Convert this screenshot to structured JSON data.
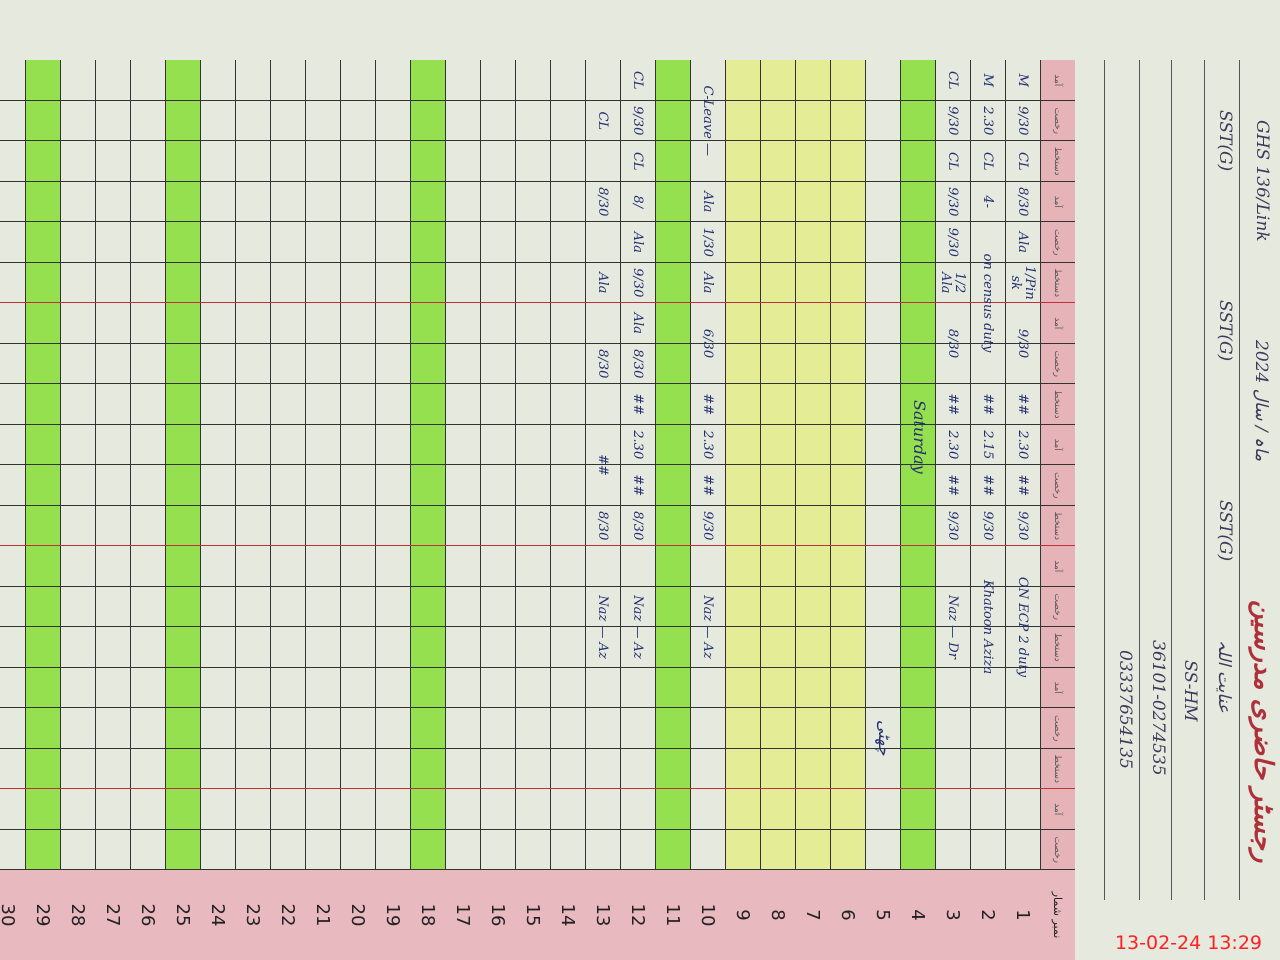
{
  "header": {
    "title": "رجسٹر حاضری مدرسین",
    "school": "GHS 136/Link",
    "label_year": "ماہ / سال 2024",
    "names": [
      "عنایت اللہ",
      "SS-HM",
      "36101-0274535",
      "03337654135"
    ],
    "designations": [
      "SST(G)",
      "SST(G)",
      "SST(G)"
    ]
  },
  "column_headers": [
    "آمد",
    "رخصت",
    "دستخط",
    "آمد",
    "رخصت",
    "دستخط",
    "آمد",
    "رخصت",
    "دستخط",
    "آمد",
    "رخصت",
    "دستخط",
    "آمد",
    "رخصت",
    "دستخط",
    "آمد",
    "رخصت",
    "دستخط",
    "آمد",
    "رخصت"
  ],
  "serial_header": "نمبر شمار",
  "rows": [
    {
      "n": "1",
      "cells": [
        "M",
        "9/30",
        "CL",
        "8/30",
        "Ala",
        "1/Pinsk",
        "9/30",
        "",
        "##",
        "2.30",
        "##",
        "9/30",
        "ON ECP 2 duty",
        "",
        "",
        "",
        "",
        "",
        "",
        ""
      ]
    },
    {
      "n": "2",
      "cells": [
        "M",
        "2.30",
        "CL",
        "4-",
        "on census duty",
        "",
        "",
        "",
        "##",
        "2.15",
        "##",
        "9/30",
        "Khatoon Aziza",
        "",
        "",
        "",
        "",
        "",
        "",
        ""
      ]
    },
    {
      "n": "3",
      "cells": [
        "CL",
        "9/30",
        "CL",
        "9/30",
        "9/30",
        "1/2 Ala",
        "8/30",
        "",
        "##",
        "2.30",
        "##",
        "9/30",
        "Naz — Dr",
        "",
        "",
        "",
        "",
        "",
        "",
        ""
      ]
    },
    {
      "n": "4",
      "cells": []
    },
    {
      "n": "5",
      "cells": []
    },
    {
      "n": "6",
      "cells": []
    },
    {
      "n": "7",
      "cells": []
    },
    {
      "n": "8",
      "cells": []
    },
    {
      "n": "9",
      "cells": []
    },
    {
      "n": "10",
      "cells": [
        "C-Leave —",
        "",
        "",
        "Ala",
        "1/30",
        "Ala",
        "6/30",
        "",
        "##",
        "2.30",
        "##",
        "9/30",
        "Naz — Az",
        "",
        "",
        "",
        "",
        "",
        "",
        ""
      ]
    },
    {
      "n": "11",
      "cells": []
    },
    {
      "n": "12",
      "cells": [
        "CL",
        "9/30",
        "CL",
        "8/",
        "Ala",
        "9/30",
        "Ala",
        "8/30",
        "##",
        "2.30",
        "##",
        "8/30",
        "Naz — Az",
        "",
        "",
        "",
        "",
        "",
        "",
        ""
      ]
    },
    {
      "n": "13",
      "cells": [
        "",
        "CL",
        "8/30",
        "",
        "",
        "Ala",
        "8/30",
        "",
        "",
        "##",
        "",
        "8/30",
        "Naz — Az",
        "",
        "",
        "",
        "",
        "",
        "",
        ""
      ]
    },
    {
      "n": "14",
      "cells": []
    },
    {
      "n": "15",
      "cells": []
    },
    {
      "n": "16",
      "cells": []
    },
    {
      "n": "17",
      "cells": []
    },
    {
      "n": "18",
      "cells": []
    },
    {
      "n": "19",
      "cells": []
    },
    {
      "n": "20",
      "cells": []
    },
    {
      "n": "21",
      "cells": []
    },
    {
      "n": "22",
      "cells": []
    },
    {
      "n": "23",
      "cells": []
    },
    {
      "n": "24",
      "cells": []
    },
    {
      "n": "25",
      "cells": []
    },
    {
      "n": "26",
      "cells": []
    },
    {
      "n": "27",
      "cells": []
    },
    {
      "n": "28",
      "cells": []
    },
    {
      "n": "29",
      "cells": []
    },
    {
      "n": "30",
      "cells": []
    }
  ],
  "highlights": {
    "green_rows": [
      "4",
      "11",
      "18",
      "25",
      "29"
    ],
    "yellow_rows": [
      "6",
      "7",
      "8",
      "9"
    ],
    "green": "#78dc1e",
    "yellow": "#e1f05a"
  },
  "notes": {
    "saturday": "Saturday",
    "holiday": "چھٹی"
  },
  "timestamp": "13-02-24  13:29"
}
